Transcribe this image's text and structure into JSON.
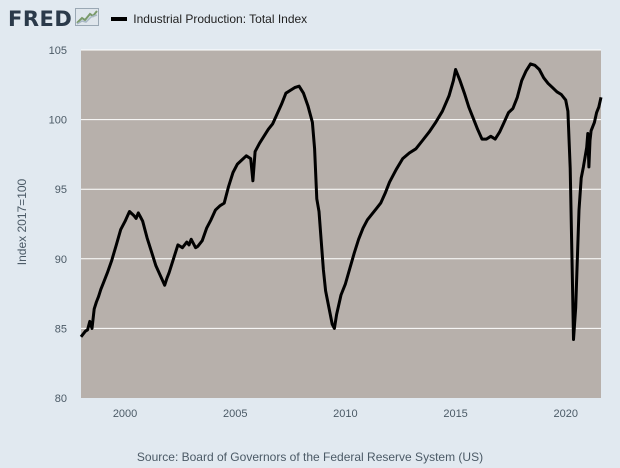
{
  "header": {
    "logo_text": "FRED",
    "logo_icon": "trend-graph-icon"
  },
  "source": "Source: Board of Governors of the Federal Reserve System (US)",
  "colors": {
    "page_background": "#e1e9f0",
    "plot_background": "#b7b0ab",
    "gridline": "#ffffff",
    "series_line": "#000000"
  },
  "chart_data": {
    "type": "line",
    "title": "",
    "xlabel": "",
    "ylabel": "Index 2017=100",
    "xlim": [
      1998.0,
      2021.6
    ],
    "ylim": [
      80,
      105
    ],
    "x_ticks": [
      2000,
      2005,
      2010,
      2015,
      2020
    ],
    "y_ticks": [
      80,
      85,
      90,
      95,
      100,
      105
    ],
    "grid": true,
    "legend_position": "top-left",
    "series": [
      {
        "name": "Industrial Production: Total Index",
        "color": "#000000",
        "x": [
          1998.0,
          1998.2,
          1998.3,
          1998.4,
          1998.5,
          1998.6,
          1998.7,
          1998.8,
          1998.9,
          1999.0,
          1999.2,
          1999.4,
          1999.6,
          1999.8,
          2000.0,
          2000.2,
          2000.4,
          2000.5,
          2000.6,
          2000.7,
          2000.8,
          2000.9,
          2001.0,
          2001.2,
          2001.4,
          2001.6,
          2001.8,
          2001.9,
          2002.0,
          2002.2,
          2002.4,
          2002.6,
          2002.8,
          2002.9,
          2003.0,
          2003.2,
          2003.3,
          2003.5,
          2003.7,
          2003.9,
          2004.1,
          2004.3,
          2004.5,
          2004.7,
          2004.9,
          2005.1,
          2005.3,
          2005.5,
          2005.7,
          2005.8,
          2005.9,
          2006.1,
          2006.3,
          2006.5,
          2006.7,
          2006.9,
          2007.1,
          2007.3,
          2007.5,
          2007.7,
          2007.9,
          2008.1,
          2008.3,
          2008.5,
          2008.6,
          2008.7,
          2008.8,
          2008.9,
          2009.0,
          2009.1,
          2009.3,
          2009.4,
          2009.5,
          2009.6,
          2009.8,
          2010.0,
          2010.2,
          2010.4,
          2010.6,
          2010.8,
          2011.0,
          2011.2,
          2011.4,
          2011.6,
          2011.8,
          2012.0,
          2012.3,
          2012.6,
          2012.9,
          2013.2,
          2013.5,
          2013.8,
          2014.1,
          2014.4,
          2014.7,
          2014.9,
          2015.0,
          2015.2,
          2015.4,
          2015.6,
          2015.8,
          2016.0,
          2016.2,
          2016.4,
          2016.6,
          2016.8,
          2017.0,
          2017.2,
          2017.4,
          2017.6,
          2017.8,
          2018.0,
          2018.2,
          2018.4,
          2018.6,
          2018.8,
          2019.0,
          2019.2,
          2019.4,
          2019.6,
          2019.8,
          2020.0,
          2020.1,
          2020.2,
          2020.3,
          2020.35,
          2020.45,
          2020.6,
          2020.7,
          2020.8,
          2020.95,
          2021.0,
          2021.05,
          2021.1,
          2021.15,
          2021.2,
          2021.3,
          2021.4,
          2021.5,
          2021.6
        ],
        "values": [
          84.4,
          84.8,
          84.9,
          85.5,
          85.0,
          86.4,
          86.9,
          87.3,
          87.8,
          88.2,
          89.0,
          89.9,
          91.0,
          92.1,
          92.7,
          93.4,
          93.1,
          92.9,
          93.3,
          93.0,
          92.7,
          92.1,
          91.5,
          90.5,
          89.5,
          88.8,
          88.1,
          88.6,
          89.0,
          90.0,
          91.0,
          90.8,
          91.2,
          91.0,
          91.4,
          90.8,
          90.9,
          91.3,
          92.2,
          92.8,
          93.5,
          93.8,
          94.0,
          95.2,
          96.2,
          96.8,
          97.1,
          97.4,
          97.2,
          95.6,
          97.7,
          98.3,
          98.8,
          99.3,
          99.7,
          100.4,
          101.1,
          101.9,
          102.1,
          102.3,
          102.4,
          101.9,
          101.0,
          99.8,
          97.9,
          94.3,
          93.4,
          91.3,
          89.2,
          87.7,
          86.1,
          85.3,
          85.0,
          86.0,
          87.4,
          88.2,
          89.3,
          90.4,
          91.4,
          92.2,
          92.8,
          93.2,
          93.6,
          94.0,
          94.7,
          95.5,
          96.4,
          97.2,
          97.6,
          97.9,
          98.5,
          99.1,
          99.8,
          100.6,
          101.7,
          102.8,
          103.6,
          102.8,
          101.9,
          100.9,
          100.1,
          99.3,
          98.6,
          98.6,
          98.8,
          98.6,
          99.1,
          99.8,
          100.5,
          100.8,
          101.6,
          102.8,
          103.5,
          104.0,
          103.9,
          103.6,
          103.0,
          102.6,
          102.3,
          102.0,
          101.8,
          101.4,
          100.6,
          96.5,
          88.5,
          84.2,
          86.5,
          93.5,
          95.8,
          96.6,
          98.0,
          99.0,
          96.6,
          98.5,
          99.2,
          99.4,
          99.8,
          100.5,
          100.9,
          101.6
        ]
      }
    ]
  }
}
